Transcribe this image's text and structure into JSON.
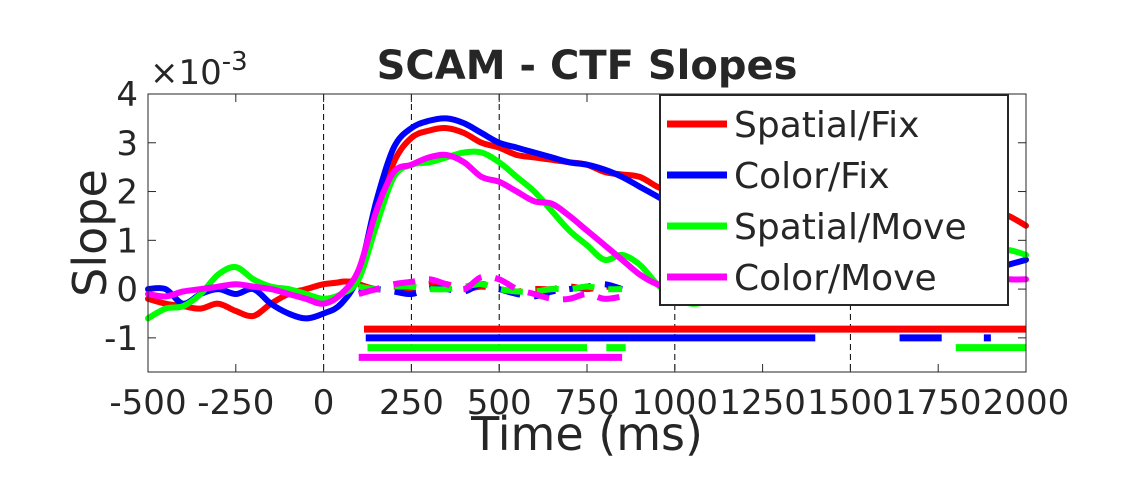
{
  "chart_data": {
    "type": "line",
    "title": "SCAM - CTF Slopes",
    "xlabel": "Time (ms)",
    "ylabel": "Slope",
    "y_exponent_label": "×10",
    "y_exponent_power": "-3",
    "xlim": [
      -500,
      2000
    ],
    "ylim": [
      -1.7,
      4
    ],
    "x_ticks": [
      -500,
      -250,
      0,
      250,
      500,
      750,
      1000,
      1250,
      1500,
      1750,
      2000
    ],
    "x_tick_labels": [
      "-500",
      "-250",
      "0",
      "250",
      "500",
      "750",
      "1000",
      "1250",
      "1500",
      "1750",
      "2000"
    ],
    "y_ticks": [
      -1,
      0,
      1,
      2,
      3,
      4
    ],
    "y_tick_labels": [
      "-1",
      "0",
      "1",
      "2",
      "3",
      "4"
    ],
    "reference_lines_x": [
      0,
      250,
      500,
      1000,
      1500
    ],
    "grid": false,
    "legend_placement": "top-right",
    "series": [
      {
        "name": "Spatial/Fix",
        "color": "#ff0000",
        "x": [
          -500,
          -450,
          -400,
          -350,
          -300,
          -250,
          -200,
          -150,
          -100,
          -50,
          0,
          50,
          100,
          150,
          200,
          250,
          300,
          350,
          400,
          450,
          500,
          550,
          600,
          650,
          700,
          750,
          800,
          850,
          900,
          950,
          1000,
          1050,
          1100,
          1150,
          1200,
          1250,
          1300,
          1350,
          1400,
          1450,
          1500,
          1550,
          1600,
          1650,
          1700,
          1750,
          1800,
          1850,
          1900,
          1950,
          2000
        ],
        "values": [
          -0.2,
          -0.3,
          -0.35,
          -0.4,
          -0.3,
          -0.45,
          -0.55,
          -0.3,
          -0.1,
          0.0,
          0.1,
          0.15,
          0.3,
          1.5,
          2.6,
          3.1,
          3.25,
          3.3,
          3.2,
          3.0,
          2.9,
          2.75,
          2.7,
          2.65,
          2.6,
          2.55,
          2.4,
          2.35,
          2.3,
          2.1,
          1.95,
          1.8,
          1.7,
          1.6,
          1.55,
          1.5,
          1.5,
          1.45,
          1.45,
          1.4,
          1.5,
          1.45,
          1.4,
          1.45,
          1.5,
          1.45,
          1.5,
          1.55,
          1.6,
          1.5,
          1.3
        ]
      },
      {
        "name": "Color/Fix",
        "color": "#0000ff",
        "x": [
          -500,
          -450,
          -400,
          -350,
          -300,
          -250,
          -200,
          -150,
          -100,
          -50,
          0,
          50,
          100,
          150,
          200,
          250,
          300,
          350,
          400,
          450,
          500,
          550,
          600,
          650,
          700,
          750,
          800,
          850,
          900,
          950,
          1000,
          1050,
          1100,
          1150,
          1200,
          1250,
          1300,
          1350,
          1400,
          1450,
          1500,
          1550,
          1600,
          1650,
          1700,
          1750,
          1800,
          1850,
          1900,
          1950,
          2000
        ],
        "values": [
          0.0,
          0.0,
          -0.3,
          -0.1,
          0.0,
          -0.1,
          0.0,
          -0.3,
          -0.5,
          -0.6,
          -0.5,
          -0.3,
          0.3,
          1.8,
          2.9,
          3.3,
          3.45,
          3.5,
          3.4,
          3.2,
          3.0,
          2.9,
          2.8,
          2.7,
          2.6,
          2.55,
          2.45,
          2.3,
          2.1,
          1.9,
          1.7,
          1.6,
          1.5,
          1.45,
          1.4,
          1.35,
          1.3,
          1.2,
          1.1,
          1.0,
          0.95,
          0.9,
          0.85,
          0.8,
          0.7,
          0.6,
          0.5,
          0.45,
          0.4,
          0.5,
          0.6
        ]
      },
      {
        "name": "Spatial/Move",
        "color": "#00ff00",
        "x": [
          -500,
          -450,
          -400,
          -350,
          -300,
          -250,
          -200,
          -150,
          -100,
          -50,
          0,
          50,
          100,
          150,
          200,
          250,
          300,
          350,
          400,
          450,
          500,
          550,
          600,
          650,
          700,
          750,
          800,
          850,
          900,
          950,
          1000,
          1050,
          1100,
          1150,
          1200,
          1250,
          1300,
          1350,
          1400,
          1450,
          1500,
          1550,
          1600,
          1650,
          1700,
          1750,
          1800,
          1850,
          1900,
          1950,
          2000
        ],
        "values": [
          -0.6,
          -0.4,
          -0.35,
          -0.1,
          0.3,
          0.45,
          0.2,
          0.05,
          0.0,
          -0.1,
          -0.2,
          -0.1,
          0.2,
          1.3,
          2.3,
          2.55,
          2.6,
          2.7,
          2.8,
          2.8,
          2.6,
          2.3,
          2.0,
          1.6,
          1.2,
          0.9,
          0.6,
          0.7,
          0.5,
          0.1,
          -0.2,
          -0.3,
          -0.25,
          -0.15,
          -0.05,
          0.0,
          0.05,
          0.1,
          0.15,
          0.2,
          0.2,
          0.25,
          0.3,
          0.35,
          0.4,
          0.5,
          0.6,
          0.7,
          0.75,
          0.8,
          0.7
        ]
      },
      {
        "name": "Color/Move",
        "color": "#ff00ff",
        "x": [
          -500,
          -450,
          -400,
          -350,
          -300,
          -250,
          -200,
          -150,
          -100,
          -50,
          0,
          50,
          100,
          150,
          200,
          250,
          300,
          350,
          400,
          450,
          500,
          550,
          600,
          650,
          700,
          750,
          800,
          850,
          900,
          950,
          1000,
          1050,
          1100,
          1150,
          1200,
          1250,
          1300,
          1350,
          1400,
          1450,
          1500,
          1550,
          1600,
          1650,
          1700,
          1750,
          1800,
          1850,
          1900,
          1950,
          2000
        ],
        "values": [
          -0.1,
          -0.15,
          -0.05,
          0.0,
          0.05,
          0.1,
          0.05,
          0.0,
          -0.1,
          -0.2,
          -0.3,
          -0.1,
          0.4,
          1.6,
          2.4,
          2.55,
          2.7,
          2.75,
          2.6,
          2.3,
          2.2,
          2.0,
          1.8,
          1.75,
          1.5,
          1.2,
          0.9,
          0.6,
          0.3,
          0.1,
          0.0,
          0.0,
          0.0,
          0.0,
          0.05,
          0.1,
          0.1,
          0.15,
          0.15,
          0.2,
          0.2,
          0.2,
          0.25,
          0.2,
          0.2,
          0.2,
          0.25,
          0.2,
          0.25,
          0.2,
          0.2
        ]
      },
      {
        "name": "",
        "color": "#ff0000",
        "style": "dashed",
        "x": [
          100,
          150,
          200,
          250,
          300,
          350,
          400,
          450,
          500,
          550,
          600,
          650,
          700,
          750,
          800,
          850
        ],
        "values": [
          0.1,
          0.0,
          0.05,
          0.0,
          0.1,
          0.1,
          0.0,
          0.05,
          0.0,
          -0.05,
          0.0,
          0.0,
          0.05,
          0.0,
          0.05,
          0.0
        ]
      },
      {
        "name": "",
        "color": "#0000ff",
        "style": "dashed",
        "x": [
          100,
          150,
          200,
          250,
          300,
          350,
          400,
          450,
          500,
          550,
          600,
          650,
          700,
          750,
          800,
          850
        ],
        "values": [
          0.0,
          0.0,
          -0.05,
          -0.1,
          0.0,
          0.0,
          -0.05,
          0.1,
          0.0,
          -0.1,
          -0.15,
          -0.05,
          0.0,
          0.05,
          0.1,
          0.0
        ]
      },
      {
        "name": "",
        "color": "#00ff00",
        "style": "dashed",
        "x": [
          100,
          150,
          200,
          250,
          300,
          350,
          400,
          450,
          500,
          550,
          600,
          650,
          700,
          750,
          800,
          850
        ],
        "values": [
          0.05,
          0.0,
          0.05,
          0.05,
          0.0,
          0.0,
          0.05,
          0.1,
          0.0,
          -0.05,
          -0.05,
          0.0,
          0.0,
          0.05,
          0.0,
          0.0
        ]
      },
      {
        "name": "",
        "color": "#ff00ff",
        "style": "dashed",
        "x": [
          100,
          150,
          200,
          250,
          300,
          350,
          400,
          450,
          500,
          550,
          600,
          650,
          700,
          750,
          800,
          850
        ],
        "values": [
          -0.1,
          0.0,
          0.1,
          0.15,
          0.2,
          0.1,
          0.0,
          0.25,
          0.2,
          0.0,
          -0.1,
          -0.2,
          -0.2,
          -0.1,
          -0.2,
          -0.15
        ]
      }
    ],
    "significance_bars": [
      {
        "color": "#ff0000",
        "y": -0.82,
        "segments": [
          [
            115,
            2000
          ]
        ]
      },
      {
        "color": "#0000ff",
        "y": -1.0,
        "segments": [
          [
            120,
            1400
          ],
          [
            1640,
            1760
          ],
          [
            1880,
            1900
          ]
        ]
      },
      {
        "color": "#00ff00",
        "y": -1.2,
        "segments": [
          [
            125,
            750
          ],
          [
            805,
            860
          ],
          [
            1800,
            2000
          ]
        ]
      },
      {
        "color": "#ff00ff",
        "y": -1.4,
        "segments": [
          [
            100,
            850
          ]
        ]
      }
    ]
  }
}
